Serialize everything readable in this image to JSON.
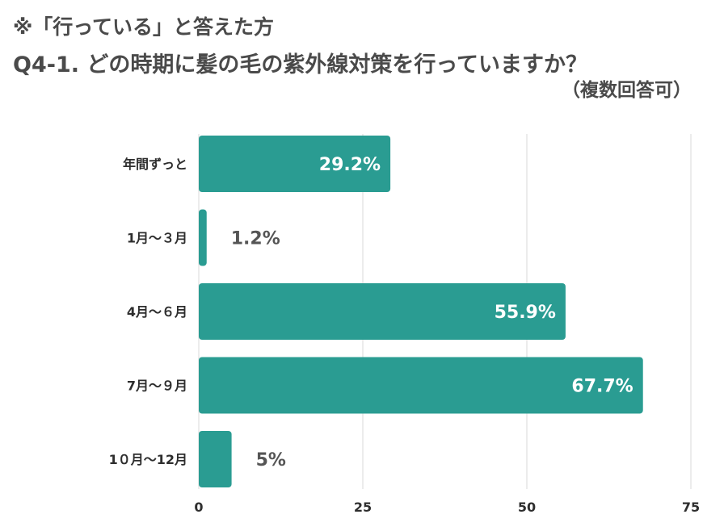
{
  "header": {
    "subtitle": "※「行っている」と答えた方",
    "title": "Q4-1. どの時期に髪の毛の紫外線対策を行っていますか？",
    "note": "（複数回答可）"
  },
  "colors": {
    "bar": "#2a9c92",
    "grid": "#d9d9d9",
    "label_inside": "#ffffff",
    "label_outside": "#555555"
  },
  "chart_data": {
    "type": "bar",
    "orientation": "horizontal",
    "categories": [
      "年間ずっと",
      "1月〜３月",
      "4月〜６月",
      "7月〜９月",
      "1０月〜12月"
    ],
    "values": [
      29.2,
      1.2,
      55.9,
      67.7,
      5
    ],
    "data_labels": [
      "29.2%",
      "1.2%",
      "55.9%",
      "67.7%",
      "5%"
    ],
    "xlim": [
      0,
      75
    ],
    "xticks": [
      0,
      25,
      50,
      75
    ],
    "grid": true
  }
}
